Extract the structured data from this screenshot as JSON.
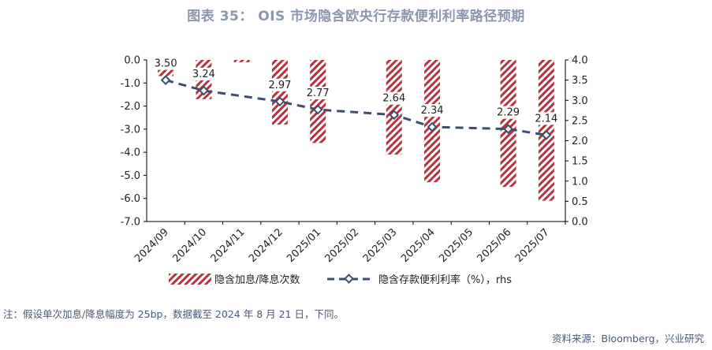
{
  "header": {
    "title": "图表  35：   OIS 市场隐含欧央行存款便利利率路径预期"
  },
  "chart_data": {
    "type": "bar",
    "categories": [
      "2024/09",
      "2024/10",
      "2024/11",
      "2024/12",
      "2025/01",
      "2025/02",
      "2025/03",
      "2025/04",
      "2025/05",
      "2025/06",
      "2025/07"
    ],
    "series": [
      {
        "name": "隐含加息/降息次数",
        "type": "bar",
        "axis": "left",
        "values": [
          -0.7,
          -1.7,
          -0.1,
          -2.8,
          -3.6,
          null,
          -4.1,
          -5.3,
          null,
          -5.5,
          -6.1
        ]
      },
      {
        "name": "隐含存款便利利率（%），rhs",
        "type": "line",
        "axis": "right",
        "values": [
          3.5,
          3.24,
          null,
          2.97,
          2.77,
          null,
          2.64,
          2.34,
          null,
          2.29,
          2.14
        ],
        "data_labels": [
          "3.50",
          "3.24",
          "",
          "2.97",
          "2.77",
          "",
          "2.64",
          "2.34",
          "",
          "2.29",
          "2.14"
        ]
      }
    ],
    "left_axis": {
      "min": -7.0,
      "max": 0.0,
      "ticks": [
        "0.0",
        "-1.0",
        "-2.0",
        "-3.0",
        "-4.0",
        "-5.0",
        "-6.0",
        "-7.0"
      ]
    },
    "right_axis": {
      "min": 0.0,
      "max": 4.0,
      "ticks": [
        "4.0",
        "3.5",
        "3.0",
        "2.5",
        "2.0",
        "1.5",
        "1.0",
        "0.5",
        "0.0"
      ]
    },
    "colors": {
      "bar": "#B5333F",
      "line": "#3C4E6E",
      "title": "#8B96AF",
      "text": "#4A5A78"
    },
    "legend": {
      "position": "bottom",
      "bar_label": "隐含加息/降息次数",
      "line_label": "隐含存款便利利率（%），rhs"
    }
  },
  "footer": {
    "note": "注：假设单次加息/降息幅度为 25bp，数据截至 2024 年 8 月 21 日，下同。",
    "source": "资料来源：Bloomberg，兴业研究"
  }
}
